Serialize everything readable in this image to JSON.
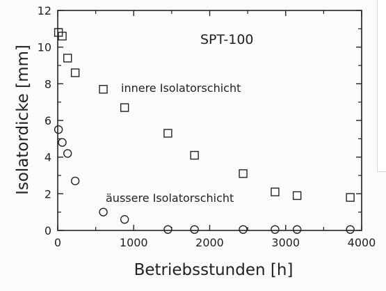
{
  "chart_data": {
    "type": "scatter",
    "annotation": "SPT-100",
    "xlabel": "Betriebsstunden [h]",
    "ylabel": "Isolatordicke [mm]",
    "xlim": [
      0,
      4000
    ],
    "ylim": [
      0,
      12
    ],
    "x_ticks": [
      "0",
      "1000",
      "2000",
      "3000",
      "4000"
    ],
    "y_ticks": [
      "0",
      "2",
      "4",
      "6",
      "8",
      "10",
      "12"
    ],
    "grid": false,
    "series": [
      {
        "name": "innere Isolatorschicht",
        "marker": "square",
        "x": [
          10,
          60,
          130,
          230,
          600,
          880,
          1450,
          1800,
          2440,
          2860,
          3150,
          3850
        ],
        "y": [
          10.8,
          10.6,
          9.4,
          8.6,
          7.7,
          6.7,
          5.3,
          4.1,
          3.1,
          2.1,
          1.9,
          1.8
        ]
      },
      {
        "name": "äussere Isolatorschicht",
        "marker": "circle",
        "x": [
          10,
          60,
          130,
          230,
          600,
          880,
          1450,
          1800,
          2440,
          2860,
          3150,
          3850
        ],
        "y": [
          5.5,
          4.8,
          4.2,
          2.7,
          1.0,
          0.6,
          0.05,
          0.05,
          0.05,
          0.05,
          0.05,
          0.05
        ]
      }
    ]
  },
  "colors": {
    "ink": "#222222",
    "background": "#fbfbfb"
  }
}
